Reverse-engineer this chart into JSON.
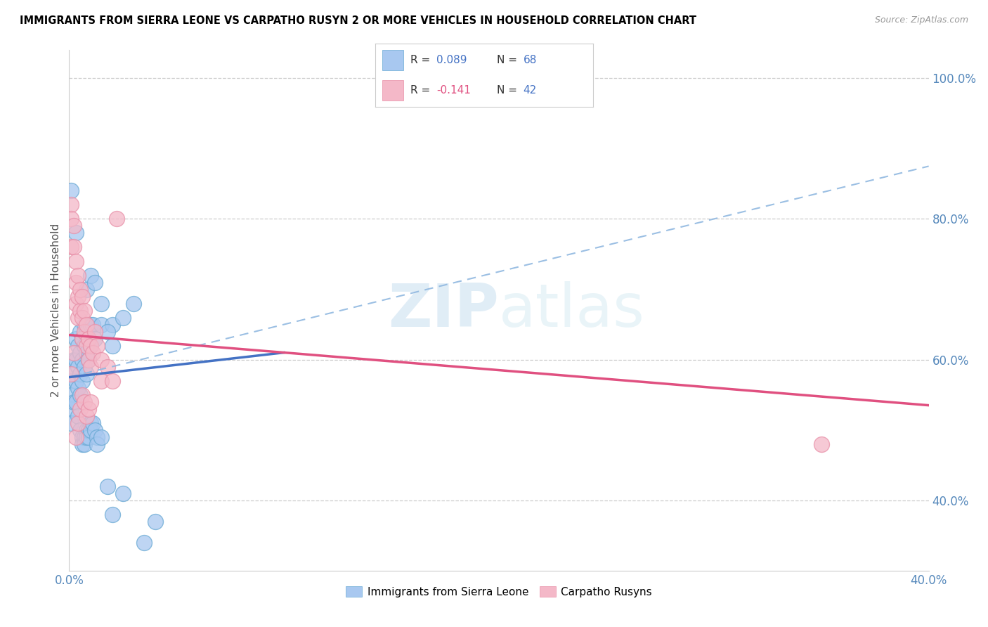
{
  "title": "IMMIGRANTS FROM SIERRA LEONE VS CARPATHO RUSYN 2 OR MORE VEHICLES IN HOUSEHOLD CORRELATION CHART",
  "source": "Source: ZipAtlas.com",
  "ylabel": "2 or more Vehicles in Household",
  "watermark": "ZIPatlas",
  "xlim": [
    0.0,
    0.4
  ],
  "ylim": [
    0.3,
    1.04
  ],
  "xticks": [
    0.0,
    0.08,
    0.16,
    0.24,
    0.32,
    0.4
  ],
  "xtick_labels": [
    "0.0%",
    "",
    "",
    "",
    "",
    "40.0%"
  ],
  "yticks_left": [],
  "yticks_right": [
    0.4,
    0.6,
    0.8,
    1.0
  ],
  "ytick_labels_right": [
    "40.0%",
    "60.0%",
    "80.0%",
    "100.0%"
  ],
  "color_blue": "#a8c8f0",
  "color_blue_edge": "#6aaad4",
  "color_pink": "#f4b8c8",
  "color_pink_edge": "#e890a8",
  "trendline_blue": "#4472c4",
  "trendline_pink": "#e05080",
  "trendline_dashed_color": "#90b8e0",
  "blue_points": [
    [
      0.001,
      0.57
    ],
    [
      0.001,
      0.55
    ],
    [
      0.001,
      0.53
    ],
    [
      0.001,
      0.51
    ],
    [
      0.002,
      0.6
    ],
    [
      0.002,
      0.58
    ],
    [
      0.002,
      0.54
    ],
    [
      0.003,
      0.63
    ],
    [
      0.003,
      0.6
    ],
    [
      0.003,
      0.57
    ],
    [
      0.003,
      0.54
    ],
    [
      0.004,
      0.62
    ],
    [
      0.004,
      0.59
    ],
    [
      0.004,
      0.56
    ],
    [
      0.005,
      0.64
    ],
    [
      0.005,
      0.61
    ],
    [
      0.005,
      0.58
    ],
    [
      0.005,
      0.55
    ],
    [
      0.006,
      0.63
    ],
    [
      0.006,
      0.6
    ],
    [
      0.006,
      0.57
    ],
    [
      0.007,
      0.65
    ],
    [
      0.007,
      0.62
    ],
    [
      0.007,
      0.59
    ],
    [
      0.008,
      0.64
    ],
    [
      0.008,
      0.61
    ],
    [
      0.008,
      0.58
    ],
    [
      0.009,
      0.63
    ],
    [
      0.009,
      0.6
    ],
    [
      0.01,
      0.65
    ],
    [
      0.01,
      0.62
    ],
    [
      0.011,
      0.65
    ],
    [
      0.012,
      0.63
    ],
    [
      0.015,
      0.65
    ],
    [
      0.02,
      0.65
    ],
    [
      0.001,
      0.84
    ],
    [
      0.003,
      0.78
    ],
    [
      0.004,
      0.52
    ],
    [
      0.005,
      0.5
    ],
    [
      0.006,
      0.49
    ],
    [
      0.006,
      0.48
    ],
    [
      0.007,
      0.49
    ],
    [
      0.007,
      0.48
    ],
    [
      0.008,
      0.5
    ],
    [
      0.008,
      0.49
    ],
    [
      0.009,
      0.5
    ],
    [
      0.009,
      0.49
    ],
    [
      0.01,
      0.51
    ],
    [
      0.01,
      0.5
    ],
    [
      0.011,
      0.51
    ],
    [
      0.012,
      0.5
    ],
    [
      0.013,
      0.49
    ],
    [
      0.013,
      0.48
    ],
    [
      0.015,
      0.49
    ],
    [
      0.018,
      0.42
    ],
    [
      0.02,
      0.38
    ],
    [
      0.025,
      0.41
    ],
    [
      0.008,
      0.7
    ],
    [
      0.01,
      0.72
    ],
    [
      0.012,
      0.71
    ],
    [
      0.015,
      0.68
    ],
    [
      0.018,
      0.64
    ],
    [
      0.02,
      0.62
    ],
    [
      0.025,
      0.66
    ],
    [
      0.03,
      0.68
    ],
    [
      0.035,
      0.34
    ],
    [
      0.04,
      0.37
    ]
  ],
  "pink_points": [
    [
      0.001,
      0.82
    ],
    [
      0.001,
      0.8
    ],
    [
      0.001,
      0.76
    ],
    [
      0.002,
      0.79
    ],
    [
      0.002,
      0.76
    ],
    [
      0.003,
      0.74
    ],
    [
      0.003,
      0.71
    ],
    [
      0.003,
      0.68
    ],
    [
      0.004,
      0.72
    ],
    [
      0.004,
      0.69
    ],
    [
      0.004,
      0.66
    ],
    [
      0.005,
      0.7
    ],
    [
      0.005,
      0.67
    ],
    [
      0.006,
      0.69
    ],
    [
      0.006,
      0.66
    ],
    [
      0.006,
      0.63
    ],
    [
      0.007,
      0.67
    ],
    [
      0.007,
      0.64
    ],
    [
      0.008,
      0.65
    ],
    [
      0.008,
      0.62
    ],
    [
      0.009,
      0.63
    ],
    [
      0.009,
      0.6
    ],
    [
      0.01,
      0.62
    ],
    [
      0.01,
      0.59
    ],
    [
      0.011,
      0.61
    ],
    [
      0.012,
      0.64
    ],
    [
      0.013,
      0.62
    ],
    [
      0.015,
      0.6
    ],
    [
      0.015,
      0.57
    ],
    [
      0.018,
      0.59
    ],
    [
      0.02,
      0.57
    ],
    [
      0.022,
      0.8
    ],
    [
      0.003,
      0.49
    ],
    [
      0.004,
      0.51
    ],
    [
      0.005,
      0.53
    ],
    [
      0.006,
      0.55
    ],
    [
      0.007,
      0.54
    ],
    [
      0.008,
      0.52
    ],
    [
      0.009,
      0.53
    ],
    [
      0.01,
      0.54
    ],
    [
      0.35,
      0.48
    ],
    [
      0.001,
      0.58
    ],
    [
      0.002,
      0.61
    ]
  ],
  "blue_trend": [
    0.0,
    0.575,
    0.1,
    0.61
  ],
  "blue_dashed": [
    0.0,
    0.575,
    0.4,
    0.875
  ],
  "pink_trend": [
    0.0,
    0.635,
    0.4,
    0.535
  ]
}
